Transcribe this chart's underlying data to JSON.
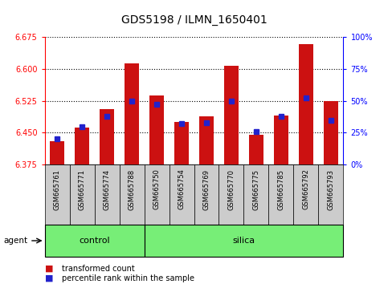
{
  "title": "GDS5198 / ILMN_1650401",
  "samples": [
    "GSM665761",
    "GSM665771",
    "GSM665774",
    "GSM665788",
    "GSM665750",
    "GSM665754",
    "GSM665769",
    "GSM665770",
    "GSM665775",
    "GSM665785",
    "GSM665792",
    "GSM665793"
  ],
  "groups": [
    "control",
    "control",
    "control",
    "control",
    "silica",
    "silica",
    "silica",
    "silica",
    "silica",
    "silica",
    "silica",
    "silica"
  ],
  "transformed_count": [
    6.43,
    6.462,
    6.505,
    6.613,
    6.538,
    6.475,
    6.488,
    6.607,
    6.445,
    6.49,
    6.658,
    6.525
  ],
  "percentile_rank": [
    20,
    30,
    38,
    50,
    47,
    32,
    33,
    50,
    26,
    38,
    52,
    35
  ],
  "y_min": 6.375,
  "y_max": 6.675,
  "y_ticks": [
    6.375,
    6.45,
    6.525,
    6.6,
    6.675
  ],
  "y2_ticks": [
    0,
    25,
    50,
    75,
    100
  ],
  "bar_color": "#cc1111",
  "percentile_color": "#2222cc",
  "group_label_bg": "#77ee77",
  "sample_bg": "#cccccc",
  "bar_base": 6.375,
  "bar_width": 0.6,
  "title_fontsize": 10,
  "tick_fontsize": 7,
  "label_fontsize": 8
}
